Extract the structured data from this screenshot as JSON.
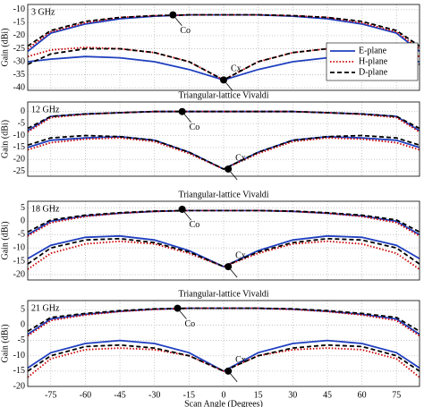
{
  "chart_data": [
    {
      "type": "line",
      "panel_label": "3 GHz",
      "ylabel": "Gain (dBi)",
      "xlim": [
        -85,
        85
      ],
      "ylim": [
        -41,
        -8
      ],
      "xticks": [
        -75,
        -60,
        -45,
        -30,
        -15,
        0,
        15,
        30,
        45,
        60,
        75
      ],
      "yticks": [
        -10,
        -15,
        -20,
        -25,
        -30,
        -35,
        -40
      ],
      "grid": true,
      "legend": "right",
      "x": [
        -85,
        -75,
        -60,
        -45,
        -30,
        -15,
        0,
        15,
        30,
        45,
        60,
        75,
        85
      ],
      "series": [
        {
          "name": "E-plane",
          "color": "#1f3fbf",
          "dash": "solid",
          "values": [
            -26,
            -19,
            -15.5,
            -13.5,
            -12.5,
            -12,
            -12,
            -12,
            -12.5,
            -13.5,
            -15.5,
            -19,
            -26
          ]
        },
        {
          "name": "H-plane",
          "color": "#cc0000",
          "dash": "dotted",
          "values": [
            -25,
            -18.5,
            -15,
            -13,
            -12.3,
            -12,
            -12,
            -12,
            -12.3,
            -13,
            -15,
            -18.5,
            -25
          ]
        },
        {
          "name": "D-plane",
          "color": "#000000",
          "dash": "dashed",
          "values": [
            -24,
            -18,
            -14.5,
            -13,
            -12.3,
            -12,
            -12,
            -12,
            -12.3,
            -13,
            -14.5,
            -18,
            -24
          ]
        },
        {
          "name": "E-plane",
          "color": "#1f3fbf",
          "dash": "solid",
          "values": [
            -30,
            -29,
            -28,
            -28.5,
            -30,
            -33,
            -37,
            -33,
            -30,
            -28.5,
            -28,
            -29,
            -30
          ]
        },
        {
          "name": "H-plane",
          "color": "#cc0000",
          "dash": "dotted",
          "values": [
            -28,
            -25.5,
            -24.5,
            -25,
            -26.5,
            -30,
            -37,
            -30,
            -26.5,
            -25,
            -24.5,
            -25.5,
            -28
          ]
        },
        {
          "name": "D-plane",
          "color": "#000000",
          "dash": "dashed",
          "values": [
            -31,
            -27,
            -25,
            -25,
            -26.5,
            -30,
            -37,
            -30,
            -26.5,
            -25,
            -25,
            -27,
            -31
          ]
        }
      ],
      "annotations": [
        {
          "text": "Co",
          "x": -22,
          "y": -12
        },
        {
          "text": "Cx",
          "x": 0,
          "y": -37
        }
      ]
    },
    {
      "type": "line",
      "title": "Triangular-lattice Vivaldi",
      "panel_label": "12 GHz",
      "ylabel": "Gain (dBi)",
      "xlim": [
        -85,
        85
      ],
      "ylim": [
        -27,
        4
      ],
      "xticks": [
        -75,
        -60,
        -45,
        -30,
        -15,
        0,
        15,
        30,
        45,
        60,
        75
      ],
      "yticks": [
        0,
        -5,
        -10,
        -15,
        -20,
        -25
      ],
      "grid": true,
      "x": [
        -85,
        -75,
        -60,
        -45,
        -30,
        -15,
        0,
        15,
        30,
        45,
        60,
        75,
        85
      ],
      "series": [
        {
          "name": "E-plane",
          "color": "#1f3fbf",
          "dash": "solid",
          "values": [
            -8,
            -2,
            -1,
            -0.5,
            0,
            0,
            0,
            0,
            0,
            -0.5,
            -1,
            -2,
            -8
          ]
        },
        {
          "name": "H-plane",
          "color": "#cc0000",
          "dash": "dotted",
          "values": [
            -8.5,
            -2.5,
            -1.2,
            -0.5,
            0,
            0,
            0,
            0,
            0,
            -0.5,
            -1.2,
            -2.5,
            -8.5
          ]
        },
        {
          "name": "D-plane",
          "color": "#000000",
          "dash": "dashed",
          "values": [
            -7,
            -2,
            -1,
            -0.5,
            0,
            0,
            0,
            0,
            0,
            -0.5,
            -1,
            -2,
            -7
          ]
        },
        {
          "name": "E-plane",
          "color": "#1f3fbf",
          "dash": "solid",
          "values": [
            -15,
            -12,
            -11,
            -10.5,
            -12,
            -17,
            -24,
            -17,
            -12,
            -10.5,
            -11,
            -12,
            -15
          ]
        },
        {
          "name": "H-plane",
          "color": "#cc0000",
          "dash": "dotted",
          "values": [
            -16,
            -13,
            -11.5,
            -11,
            -12.5,
            -17.5,
            -24,
            -17.5,
            -12.5,
            -11,
            -11.5,
            -13,
            -16
          ]
        },
        {
          "name": "D-plane",
          "color": "#000000",
          "dash": "dashed",
          "values": [
            -14,
            -11,
            -10,
            -10.5,
            -12,
            -17,
            -24,
            -17,
            -12,
            -10.5,
            -10,
            -11,
            -14
          ]
        }
      ],
      "annotations": [
        {
          "text": "Co",
          "x": -18,
          "y": 0
        },
        {
          "text": "Cx",
          "x": 2,
          "y": -24
        }
      ]
    },
    {
      "type": "line",
      "title": "Triangular-lattice Vivaldi",
      "panel_label": "18 GHz",
      "ylabel": "Gain (dBi)",
      "xlim": [
        -85,
        85
      ],
      "ylim": [
        -22,
        7.5
      ],
      "xticks": [
        -75,
        -60,
        -45,
        -30,
        -15,
        0,
        15,
        30,
        45,
        60,
        75
      ],
      "yticks": [
        5,
        0,
        -5,
        -10,
        -15,
        -20
      ],
      "grid": true,
      "x": [
        -85,
        -75,
        -60,
        -45,
        -30,
        -15,
        0,
        15,
        30,
        45,
        60,
        75,
        85
      ],
      "series": [
        {
          "name": "E-plane",
          "color": "#1f3fbf",
          "dash": "solid",
          "values": [
            -5,
            0,
            2,
            3,
            3.7,
            4,
            4,
            4,
            3.7,
            3,
            2,
            0,
            -5
          ]
        },
        {
          "name": "H-plane",
          "color": "#cc0000",
          "dash": "dotted",
          "values": [
            -5.5,
            -0.5,
            1.8,
            3,
            3.7,
            4,
            4,
            4,
            3.7,
            3,
            1.8,
            -0.5,
            -5.5
          ]
        },
        {
          "name": "D-plane",
          "color": "#000000",
          "dash": "dashed",
          "values": [
            -4,
            0.5,
            2.3,
            3.2,
            3.8,
            4,
            4,
            4,
            3.8,
            3.2,
            2.3,
            0.5,
            -4
          ]
        },
        {
          "name": "E-plane",
          "color": "#1f3fbf",
          "dash": "solid",
          "values": [
            -14,
            -9,
            -6,
            -5.5,
            -7,
            -11,
            -17,
            -11,
            -7,
            -5.5,
            -6,
            -9,
            -14
          ]
        },
        {
          "name": "H-plane",
          "color": "#cc0000",
          "dash": "dotted",
          "values": [
            -18,
            -12,
            -8.5,
            -7.5,
            -8.5,
            -12,
            -17,
            -12,
            -8.5,
            -7.5,
            -8.5,
            -12,
            -18
          ]
        },
        {
          "name": "D-plane",
          "color": "#000000",
          "dash": "dashed",
          "values": [
            -16,
            -10,
            -7,
            -6.5,
            -8,
            -11.5,
            -17,
            -11.5,
            -8,
            -6.5,
            -7,
            -10,
            -16
          ]
        }
      ],
      "annotations": [
        {
          "text": "Co",
          "x": -18,
          "y": 4.5
        },
        {
          "text": "Cx",
          "x": 2,
          "y": -17
        }
      ]
    },
    {
      "type": "line",
      "title": "Triangular-lattice Vivaldi",
      "panel_label": "21 GHz",
      "ylabel": "Gain (dBi)",
      "xlabel": "Scan Angle (Degrees)",
      "xlim": [
        -85,
        85
      ],
      "ylim": [
        -20,
        8
      ],
      "xticks": [
        -75,
        -60,
        -45,
        -30,
        -15,
        0,
        15,
        30,
        45,
        60,
        75
      ],
      "yticks": [
        5,
        0,
        -5,
        -10,
        -15,
        -20
      ],
      "grid": true,
      "x": [
        -85,
        -75,
        -60,
        -45,
        -30,
        -15,
        0,
        15,
        30,
        45,
        60,
        75,
        85
      ],
      "series": [
        {
          "name": "E-plane",
          "color": "#1f3fbf",
          "dash": "solid",
          "values": [
            -3,
            2,
            3.5,
            4.5,
            5.2,
            5.5,
            5.5,
            5.5,
            5.2,
            4.5,
            3.5,
            2,
            -3
          ]
        },
        {
          "name": "H-plane",
          "color": "#cc0000",
          "dash": "dotted",
          "values": [
            -3.5,
            1.5,
            3.3,
            4.4,
            5.1,
            5.5,
            5.5,
            5.5,
            5.1,
            4.4,
            3.3,
            1.5,
            -3.5
          ]
        },
        {
          "name": "D-plane",
          "color": "#000000",
          "dash": "dashed",
          "values": [
            -2,
            2.5,
            3.8,
            4.7,
            5.3,
            5.5,
            5.5,
            5.5,
            5.3,
            4.7,
            3.8,
            2.5,
            -2
          ]
        },
        {
          "name": "E-plane",
          "color": "#1f3fbf",
          "dash": "solid",
          "values": [
            -14,
            -9,
            -6,
            -5,
            -6,
            -9,
            -15,
            -9,
            -6,
            -5,
            -6,
            -9,
            -14
          ]
        },
        {
          "name": "H-plane",
          "color": "#cc0000",
          "dash": "dotted",
          "values": [
            -17,
            -11,
            -8,
            -7.5,
            -8,
            -10,
            -15,
            -10,
            -8,
            -7.5,
            -8,
            -11,
            -17
          ]
        },
        {
          "name": "D-plane",
          "color": "#000000",
          "dash": "dashed",
          "values": [
            -15,
            -10,
            -7,
            -6.5,
            -7.5,
            -10,
            -15,
            -10,
            -7.5,
            -6.5,
            -7,
            -10,
            -15
          ]
        }
      ],
      "annotations": [
        {
          "text": "Co",
          "x": -20,
          "y": 5.5
        },
        {
          "text": "Cx",
          "x": 2,
          "y": -15
        }
      ]
    }
  ]
}
